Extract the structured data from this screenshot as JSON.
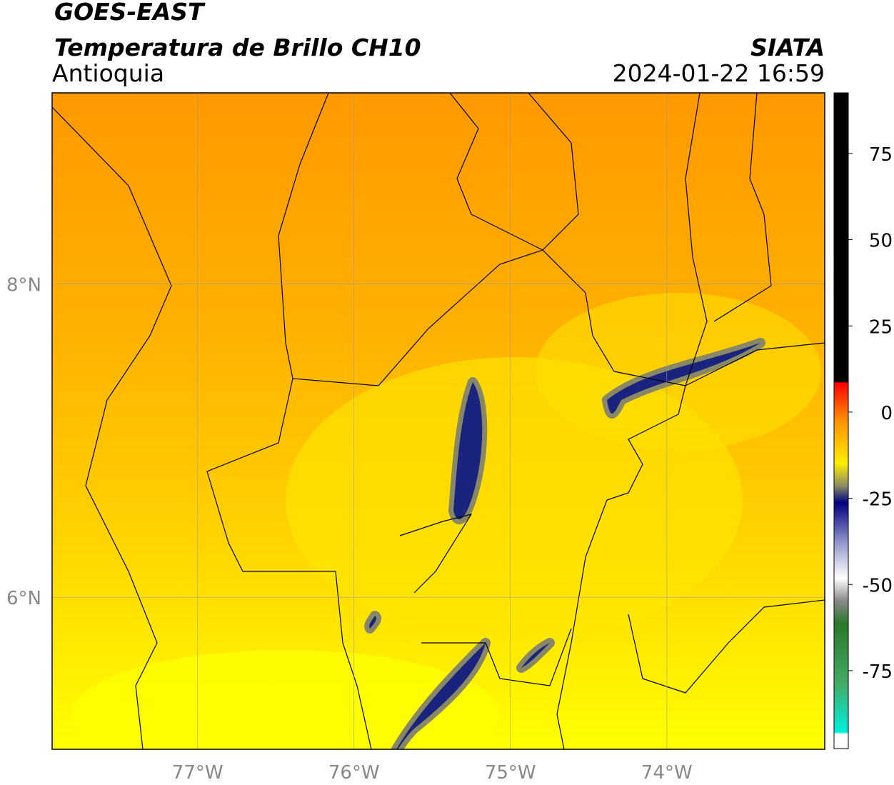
{
  "header": {
    "title": "GOES-EAST",
    "subtitle": "Temperatura de Brillo CH10",
    "region": "Antioquia",
    "source": "SIATA",
    "datetime": "2024-01-22 16:59"
  },
  "map": {
    "xlim": [
      -77.93,
      -72.99
    ],
    "ylim": [
      5.03,
      9.22
    ],
    "xticks": [
      {
        "value": -77,
        "label": "77°W"
      },
      {
        "value": -76,
        "label": "76°W"
      },
      {
        "value": -75,
        "label": "75°W"
      },
      {
        "value": -74,
        "label": "74°W"
      }
    ],
    "yticks": [
      {
        "value": 6,
        "label": "6°N"
      },
      {
        "value": 8,
        "label": "8°N"
      }
    ]
  },
  "colorbar": {
    "lim": [
      -97.6,
      92.6
    ],
    "ticks": [
      -75,
      -50,
      -25,
      0,
      25,
      50,
      75
    ]
  }
}
